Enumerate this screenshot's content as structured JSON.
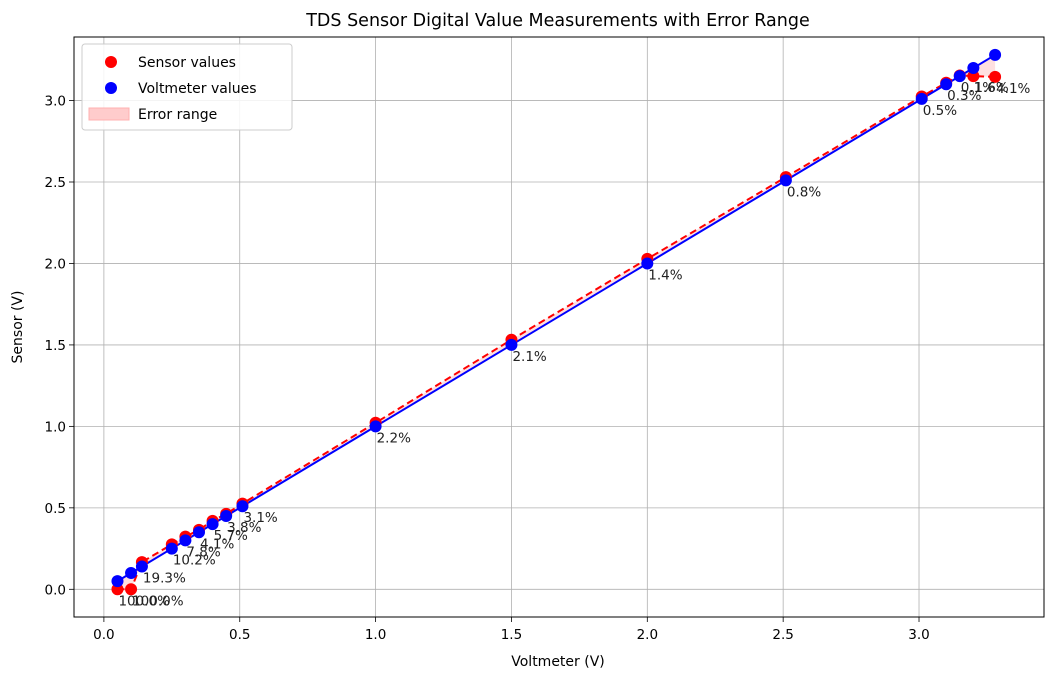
{
  "chart_data": {
    "type": "scatter",
    "title": "TDS Sensor Digital Value Measurements with Error Range",
    "xlabel": "Voltmeter (V)",
    "ylabel": "Sensor (V)",
    "xlim": [
      -0.11,
      3.46
    ],
    "ylim": [
      -0.17,
      3.39
    ],
    "xticks": [
      "0.0",
      "0.5",
      "1.0",
      "1.5",
      "2.0",
      "2.5",
      "3.0"
    ],
    "yticks": [
      "0.0",
      "0.5",
      "1.0",
      "1.5",
      "2.0",
      "2.5",
      "3.0"
    ],
    "grid": true,
    "legend_position": "upper-left",
    "legend": [
      "Sensor values",
      "Voltmeter values",
      "Error range"
    ],
    "colors": {
      "sensor": "#ff0000",
      "voltmeter": "#0000ff",
      "error_band": "#ffcccc"
    },
    "voltmeter": [
      0.05,
      0.1,
      0.14,
      0.25,
      0.3,
      0.35,
      0.4,
      0.45,
      0.51,
      1.0,
      1.5,
      2.0,
      2.51,
      3.01,
      3.1,
      3.15,
      3.2,
      3.28
    ],
    "series": [
      {
        "name": "Sensor values",
        "values": [
          0.0,
          0.0,
          0.167,
          0.276,
          0.323,
          0.365,
          0.42,
          0.463,
          0.526,
          1.022,
          1.532,
          2.028,
          2.53,
          3.025,
          3.109,
          3.154,
          3.15,
          3.145
        ]
      },
      {
        "name": "Voltmeter values",
        "values": [
          0.05,
          0.1,
          0.14,
          0.25,
          0.3,
          0.35,
          0.4,
          0.45,
          0.51,
          1.0,
          1.5,
          2.0,
          2.51,
          3.01,
          3.1,
          3.15,
          3.2,
          3.28
        ]
      }
    ],
    "annotations": [
      "100.0%",
      "100.0%",
      "19.3%",
      "10.2%",
      "7.8%",
      "4.1%",
      "5.7%",
      "3.8%",
      "3.1%",
      "2.2%",
      "2.1%",
      "1.4%",
      "0.8%",
      "0.5%",
      "0.3%",
      "0.1%",
      "1.6%",
      "4.1%"
    ]
  }
}
